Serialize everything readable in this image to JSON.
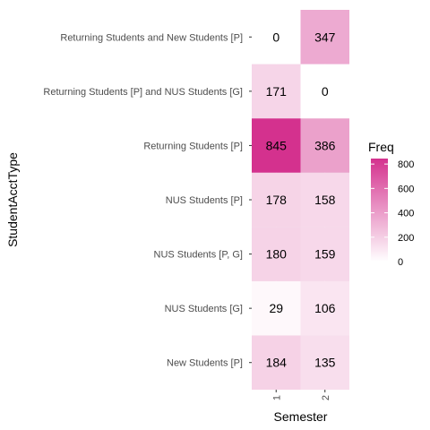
{
  "chart_data": {
    "type": "heatmap",
    "xlabel": "Semester",
    "ylabel": "StudentAcctType",
    "x_categories": [
      "1",
      "2"
    ],
    "y_categories": [
      "New Students [P]",
      "NUS Students [G]",
      "NUS Students [P, G]",
      "NUS Students [P]",
      "Returning Students [P]",
      "Returning Students [P] and NUS Students [G]",
      "Returning Students and New Students [P]"
    ],
    "values": [
      [
        184,
        135
      ],
      [
        29,
        106
      ],
      [
        180,
        159
      ],
      [
        178,
        158
      ],
      [
        845,
        386
      ],
      [
        171,
        0
      ],
      [
        0,
        347
      ]
    ],
    "legend": {
      "title": "Freq",
      "ticks": [
        0,
        200,
        400,
        600,
        800
      ],
      "range": [
        0,
        845
      ],
      "low_color": "#ffffff",
      "high_color": "#d4318e"
    },
    "panel_background": "#ebebeb",
    "grid": true
  }
}
